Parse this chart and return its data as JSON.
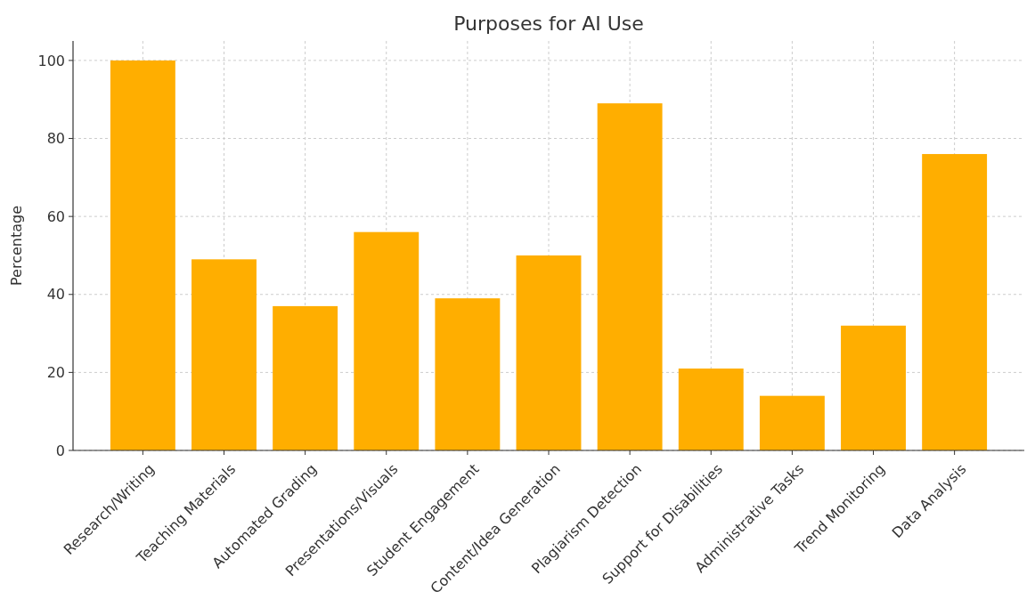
{
  "chart_data": {
    "type": "bar",
    "title": "Purposes for AI Use",
    "ylabel": "Percentage",
    "categories": [
      "Research/Writing",
      "Teaching Materials",
      "Automated Grading",
      "Presentations/Visuals",
      "Student Engagement",
      "Content/Idea Generation",
      "Plagiarism Detection",
      "Support for Disabilities",
      "Administrative Tasks",
      "Trend Monitoring",
      "Data Analysis"
    ],
    "values": [
      100,
      49,
      37,
      56,
      39,
      50,
      89,
      21,
      14,
      32,
      76
    ],
    "color": "#ffae00",
    "ylim": [
      0,
      105
    ],
    "yticks": [
      0,
      20,
      40,
      60,
      80,
      100
    ],
    "grid": true
  }
}
